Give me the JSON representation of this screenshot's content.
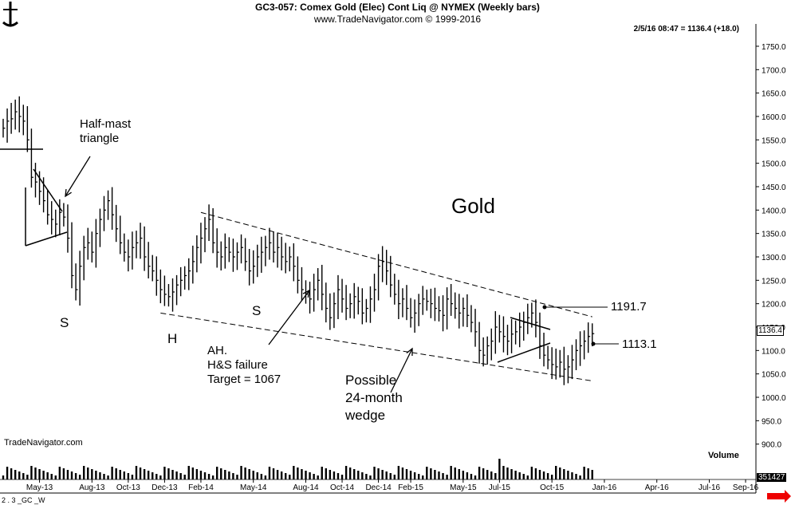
{
  "header": {
    "title": "GC3-057:  Comex Gold (Elec) Cont Liq @ NYMEX  (Weekly bars)",
    "source": "www.TradeNavigator.com © 1999-2016",
    "quote": "2/5/16 08:47 = 1136.4 (+18.0)"
  },
  "annotations": {
    "gold": "Gold",
    "half_mast": "Half-mast\ntriangle",
    "s_left": "S",
    "h": "H",
    "s_right": "S",
    "ah": "AH.\nH&S failure\nTarget = 1067",
    "wedge": "Possible\n24-month\nwedge",
    "level_1191": "1191.7",
    "level_1113": "1113.1"
  },
  "footer": {
    "watermark": "TradeNavigator.com",
    "volume_label": "Volume",
    "symbol_code": "2 . 3 _GC _W",
    "volume_value": "351427",
    "price_badge": "1136.4"
  },
  "chart_data": {
    "type": "ohlc",
    "y_ticks": [
      900,
      950,
      1000,
      1050,
      1100,
      1150,
      1200,
      1250,
      1300,
      1350,
      1400,
      1450,
      1500,
      1550,
      1600,
      1650,
      1700,
      1750
    ],
    "y_tick_labels": [
      "900.0",
      "950.0",
      "1000.0",
      "1050.0",
      "1100.0",
      "1150.0",
      "1200.0",
      "1250.0",
      "1300.0",
      "1350.0",
      "1400.0",
      "1450.0",
      "1500.0",
      "1550.0",
      "1600.0",
      "1650.0",
      "1700.0",
      "1750.0"
    ],
    "ylim": [
      860,
      1780
    ],
    "x_ticks": [
      "May-13",
      "Aug-13",
      "Oct-13",
      "Dec-13",
      "Feb-14",
      "May-14",
      "Aug-14",
      "Oct-14",
      "Dec-14",
      "Feb-15",
      "May-15",
      "Jul-15",
      "Oct-15",
      "Jan-16",
      "Apr-16",
      "Jul-16",
      "Sep-16"
    ],
    "x_tick_weeks": [
      9,
      22,
      31,
      40,
      49,
      62,
      75,
      84,
      93,
      101,
      114,
      123,
      136,
      149,
      162,
      175,
      184
    ],
    "bars_weekly_close_approx": [
      1575,
      1590,
      1595,
      1610,
      1600,
      1590,
      1550,
      1470,
      1460,
      1440,
      1420,
      1390,
      1380,
      1370,
      1395,
      1385,
      1340,
      1260,
      1230,
      1280,
      1320,
      1330,
      1310,
      1350,
      1380,
      1400,
      1420,
      1390,
      1360,
      1330,
      1310,
      1300,
      1320,
      1330,
      1340,
      1300,
      1280,
      1270,
      1250,
      1230,
      1220,
      1215,
      1225,
      1240,
      1250,
      1260,
      1270,
      1290,
      1320,
      1340,
      1360,
      1380,
      1330,
      1310,
      1300,
      1320,
      1310,
      1300,
      1310,
      1320,
      1290,
      1270,
      1280,
      1300,
      1310,
      1320,
      1330,
      1310,
      1320,
      1300,
      1290,
      1300,
      1280,
      1250,
      1230,
      1220,
      1210,
      1230,
      1250,
      1220,
      1190,
      1170,
      1200,
      1230,
      1210,
      1190,
      1200,
      1215,
      1205,
      1180,
      1190,
      1210,
      1230,
      1280,
      1290,
      1270,
      1240,
      1220,
      1200,
      1210,
      1190,
      1170,
      1180,
      1200,
      1210,
      1205,
      1200,
      1190,
      1185,
      1175,
      1210,
      1200,
      1190,
      1180,
      1190,
      1175,
      1160,
      1140,
      1100,
      1090,
      1110,
      1120,
      1150,
      1140,
      1130,
      1120,
      1135,
      1140,
      1150,
      1160,
      1170,
      1180,
      1160,
      1110,
      1090,
      1080,
      1070,
      1065,
      1075,
      1060,
      1065,
      1080,
      1100,
      1110,
      1120,
      1130,
      1136
    ],
    "volume_peak_label": "351427",
    "trendlines": [
      {
        "name": "upper",
        "from": {
          "week": 49,
          "price": 1395
        },
        "to": {
          "week": 146,
          "price": 1172
        }
      },
      {
        "name": "lower",
        "from": {
          "week": 39,
          "price": 1180
        },
        "to": {
          "week": 146,
          "price": 1035
        }
      }
    ]
  }
}
